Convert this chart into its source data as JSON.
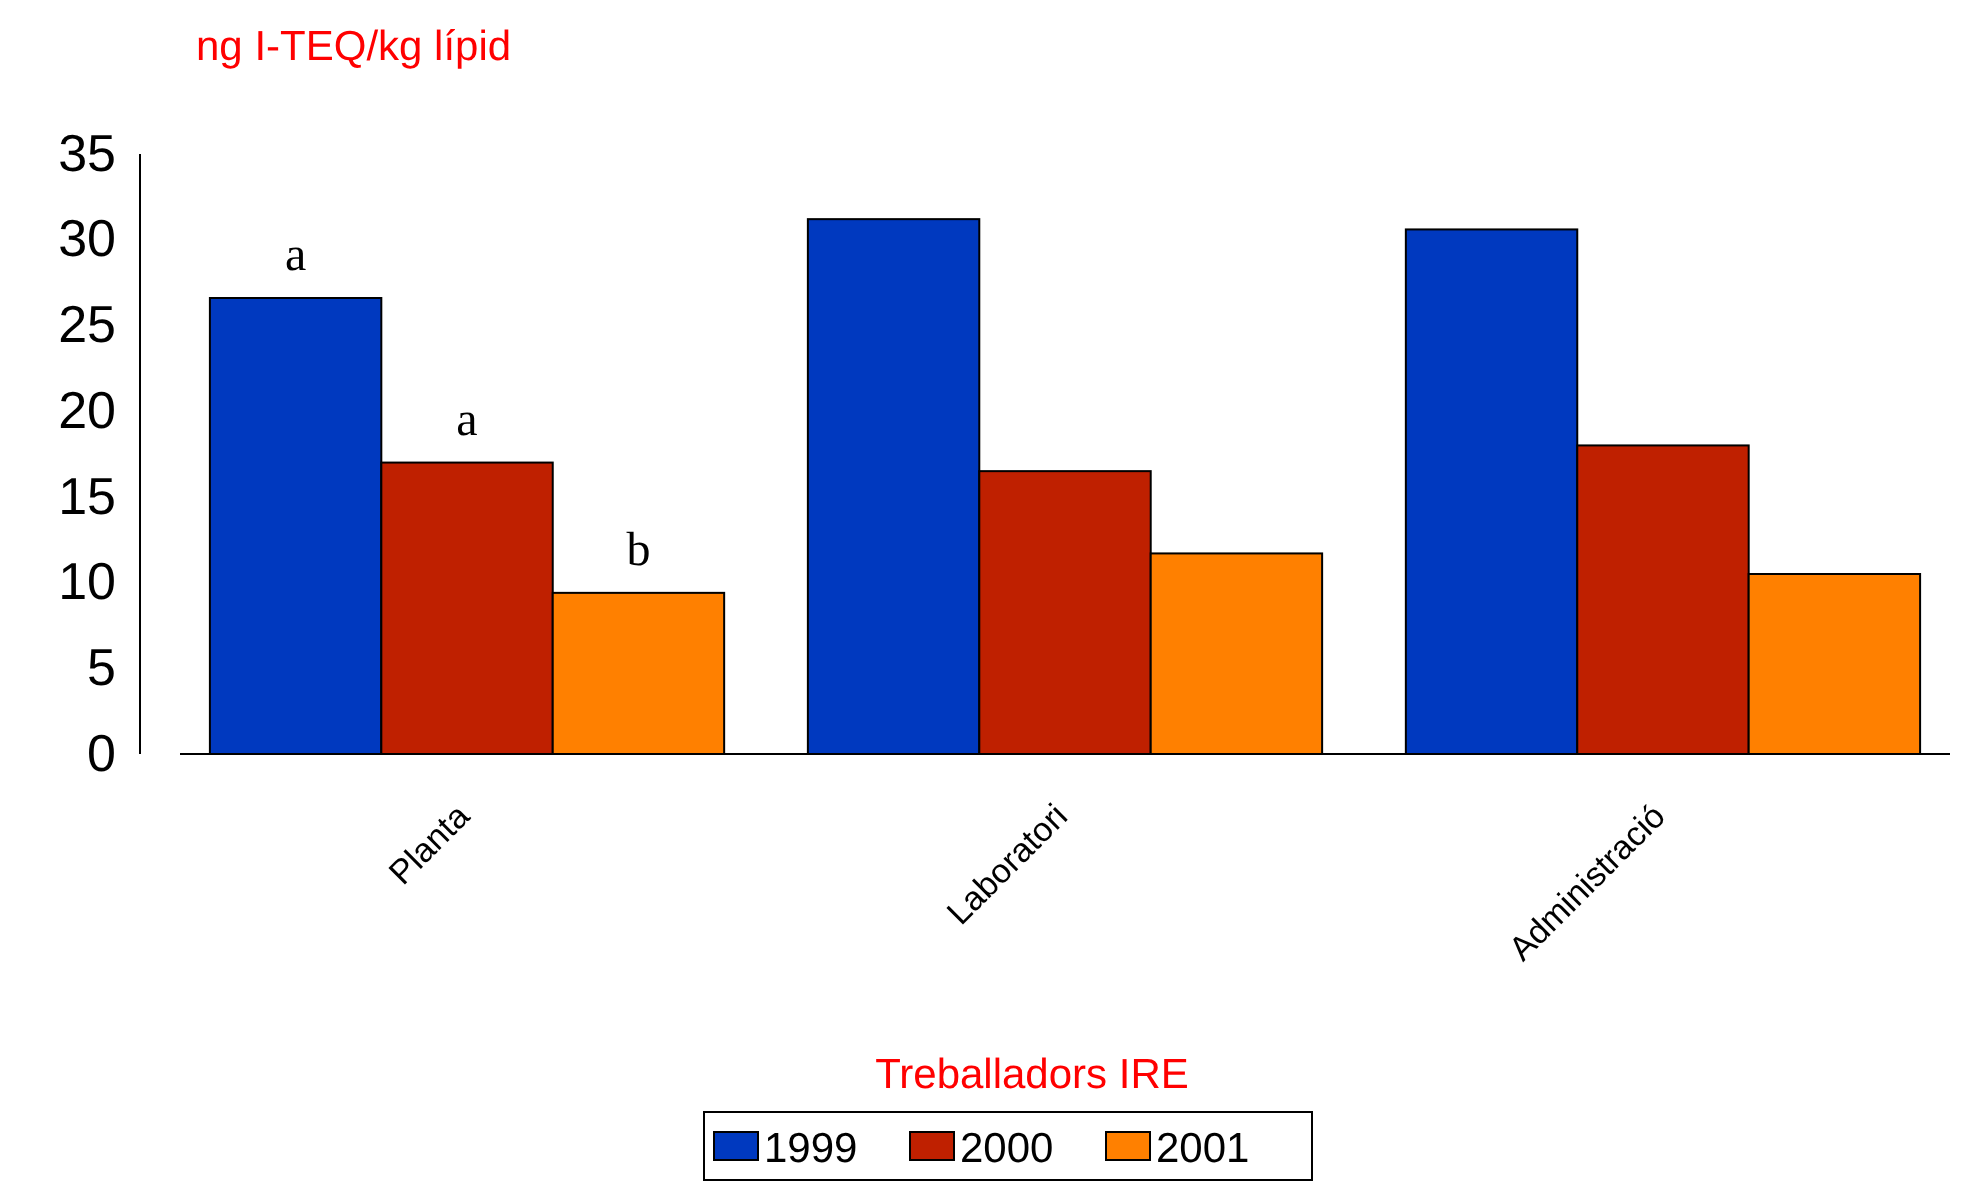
{
  "chart_data": {
    "type": "bar",
    "ylabel": "ng I-TEQ/kg lípid",
    "legend_title": "Treballadors IRE",
    "categories": [
      "Planta",
      "Laboratori",
      "Administració"
    ],
    "series": [
      {
        "name": "1999",
        "color": "#0039bf",
        "values": [
          26.6,
          31.2,
          30.6
        ]
      },
      {
        "name": "2000",
        "color": "#bf2000",
        "values": [
          17.0,
          16.5,
          18.0
        ]
      },
      {
        "name": "2001",
        "color": "#ff8000",
        "values": [
          9.4,
          11.7,
          10.5
        ]
      }
    ],
    "ylim": [
      0,
      35
    ],
    "yticks": [
      0,
      5,
      10,
      15,
      20,
      25,
      30,
      35
    ],
    "grid": false,
    "legend": "bottom",
    "annotations": [
      "a",
      "a",
      "b"
    ]
  }
}
